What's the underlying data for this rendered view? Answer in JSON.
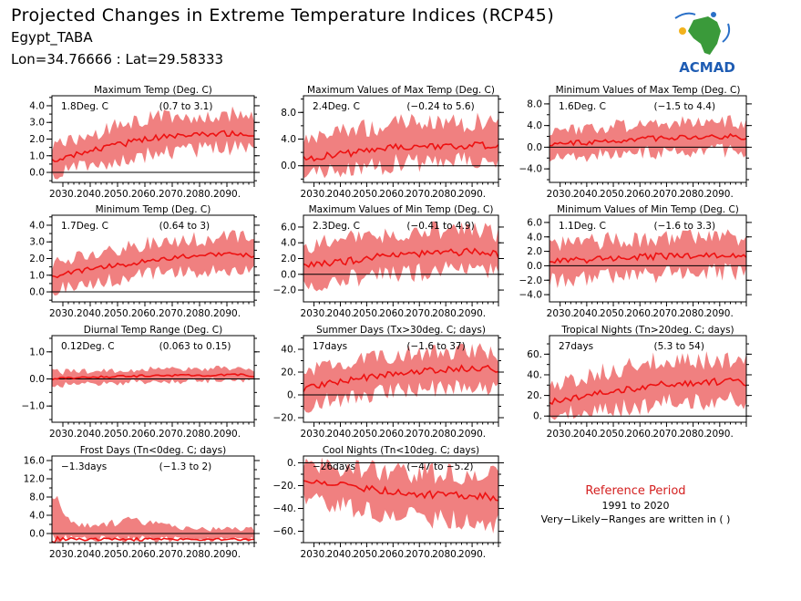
{
  "header": {
    "title": "Projected Changes in Extreme Temperature Indices (RCP45)",
    "location": "Egypt_TABA",
    "coords": "Lon=34.76666 : Lat=29.58333"
  },
  "logo": {
    "text": "ACMAD"
  },
  "reference": {
    "title": "Reference Period",
    "years": "1991 to 2020",
    "note": "Very−Likely−Ranges are written in ( )"
  },
  "colors": {
    "band": "#f08080",
    "line": "#ee1111",
    "title_red": "#d42020"
  },
  "chart_data": [
    {
      "type": "area",
      "title": "Maximum Temp (Deg. C)",
      "summary": "1.8Deg. C",
      "range": "(0.7 to 3.1)",
      "xticks": [
        "2030.",
        "2040.",
        "2050.",
        "2060.",
        "2070.",
        "2080.",
        "2090."
      ],
      "xlim": [
        2026,
        2100
      ],
      "yticks": [
        0,
        1,
        2,
        3,
        4
      ],
      "yticklabels": [
        "0.0",
        "1.0",
        "2.0",
        "3.0",
        "4.0"
      ],
      "ylim": [
        -0.6,
        4.6
      ],
      "x": [
        2026,
        2035,
        2045,
        2055,
        2065,
        2075,
        2085,
        2095,
        2100
      ],
      "median": [
        0.7,
        1.1,
        1.5,
        1.8,
        2.1,
        2.2,
        2.3,
        2.4,
        2.1
      ],
      "lower": [
        -0.2,
        0.3,
        0.5,
        0.9,
        1.2,
        1.3,
        1.4,
        1.5,
        1.3
      ],
      "upper": [
        1.6,
        2.0,
        2.5,
        3.0,
        3.3,
        3.3,
        3.4,
        3.6,
        3.2
      ]
    },
    {
      "type": "area",
      "title": "Maximum Values of Max Temp (Deg. C)",
      "summary": "2.4Deg. C",
      "range": "(−0.24 to 5.6)",
      "xticks": [
        "2030.",
        "2040.",
        "2050.",
        "2060.",
        "2070.",
        "2080.",
        "2090."
      ],
      "xlim": [
        2026,
        2100
      ],
      "yticks": [
        0,
        4,
        8
      ],
      "yticklabels": [
        "0.0",
        "4.0",
        "8.0"
      ],
      "ylim": [
        -2.5,
        10.5
      ],
      "x": [
        2026,
        2035,
        2045,
        2055,
        2065,
        2075,
        2085,
        2095,
        2100
      ],
      "median": [
        1.0,
        1.5,
        2.0,
        2.5,
        2.8,
        3.0,
        3.0,
        3.1,
        2.8
      ],
      "lower": [
        -1.5,
        -1.0,
        -0.5,
        0.0,
        0.5,
        0.5,
        0.6,
        0.7,
        0.3
      ],
      "upper": [
        3.5,
        4.5,
        5.5,
        6.0,
        6.5,
        6.5,
        6.4,
        6.6,
        6.0
      ]
    },
    {
      "type": "area",
      "title": "Minimum Values of Max Temp (Deg. C)",
      "summary": "1.6Deg. C",
      "range": "(−1.5 to 4.4)",
      "xticks": [
        "2030.",
        "2040.",
        "2050.",
        "2060.",
        "2070.",
        "2080.",
        "2090."
      ],
      "xlim": [
        2026,
        2100
      ],
      "yticks": [
        -4,
        0,
        4,
        8
      ],
      "yticklabels": [
        "−4.0",
        "0.0",
        "4.0",
        "8.0"
      ],
      "ylim": [
        -6.5,
        9.5
      ],
      "x": [
        2026,
        2035,
        2045,
        2055,
        2065,
        2075,
        2085,
        2095,
        2100
      ],
      "median": [
        0.5,
        0.8,
        1.0,
        1.3,
        1.6,
        1.8,
        1.9,
        2.0,
        1.8
      ],
      "lower": [
        -2.0,
        -1.8,
        -1.5,
        -1.2,
        -1.0,
        -0.8,
        -0.7,
        -0.6,
        -0.8
      ],
      "upper": [
        3.0,
        3.5,
        3.8,
        4.0,
        4.3,
        4.5,
        4.6,
        4.7,
        4.4
      ]
    },
    {
      "type": "area",
      "title": "Minimum Temp (Deg. C)",
      "summary": "1.7Deg. C",
      "range": "(0.64 to 3)",
      "xticks": [
        "2030.",
        "2040.",
        "2050.",
        "2060.",
        "2070.",
        "2080.",
        "2090."
      ],
      "xlim": [
        2026,
        2100
      ],
      "yticks": [
        0,
        1,
        2,
        3,
        4
      ],
      "yticklabels": [
        "0.0",
        "1.0",
        "2.0",
        "3.0",
        "4.0"
      ],
      "ylim": [
        -0.6,
        4.6
      ],
      "x": [
        2026,
        2035,
        2045,
        2055,
        2065,
        2075,
        2085,
        2095,
        2100
      ],
      "median": [
        0.9,
        1.2,
        1.5,
        1.7,
        2.0,
        2.1,
        2.2,
        2.3,
        2.1
      ],
      "lower": [
        0.1,
        0.4,
        0.6,
        0.9,
        1.1,
        1.2,
        1.3,
        1.4,
        1.2
      ],
      "upper": [
        1.7,
        2.1,
        2.4,
        2.7,
        3.0,
        3.1,
        3.2,
        3.3,
        3.0
      ]
    },
    {
      "type": "area",
      "title": "Maximum Values of Min Temp (Deg. C)",
      "summary": "2.3Deg. C",
      "range": "(−0.41 to 4.9)",
      "xticks": [
        "2030.",
        "2040.",
        "2050.",
        "2060.",
        "2070.",
        "2080.",
        "2090."
      ],
      "xlim": [
        2026,
        2100
      ],
      "yticks": [
        -2,
        0,
        2,
        4,
        6
      ],
      "yticklabels": [
        "−2.0",
        "0.0",
        "2.0",
        "4.0",
        "6.0"
      ],
      "ylim": [
        -3.5,
        7.5
      ],
      "x": [
        2026,
        2035,
        2045,
        2055,
        2065,
        2075,
        2085,
        2095,
        2100
      ],
      "median": [
        1.0,
        1.4,
        1.8,
        2.2,
        2.5,
        2.7,
        2.8,
        2.9,
        2.5
      ],
      "lower": [
        -1.5,
        -1.0,
        -0.6,
        -0.2,
        0.2,
        0.4,
        0.5,
        0.6,
        0.2
      ],
      "upper": [
        3.5,
        4.0,
        4.5,
        5.0,
        5.3,
        5.5,
        5.5,
        5.6,
        5.2
      ]
    },
    {
      "type": "area",
      "title": "Minimum Values of Min Temp (Deg. C)",
      "summary": "1.1Deg. C",
      "range": "(−1.6 to 3.3)",
      "xticks": [
        "2030.",
        "2040.",
        "2050.",
        "2060.",
        "2070.",
        "2080.",
        "2090."
      ],
      "xlim": [
        2026,
        2100
      ],
      "yticks": [
        -4,
        -2,
        0,
        2,
        4,
        6
      ],
      "yticklabels": [
        "−4.0",
        "−2.0",
        "0.0",
        "2.0",
        "4.0",
        "6.0"
      ],
      "ylim": [
        -5,
        7
      ],
      "x": [
        2026,
        2035,
        2045,
        2055,
        2065,
        2075,
        2085,
        2095,
        2100
      ],
      "median": [
        0.6,
        0.8,
        0.9,
        1.1,
        1.3,
        1.4,
        1.5,
        1.6,
        1.4
      ],
      "lower": [
        -2.0,
        -1.8,
        -1.6,
        -1.4,
        -1.2,
        -1.0,
        -0.9,
        -0.8,
        -1.0
      ],
      "upper": [
        3.0,
        3.2,
        3.4,
        3.6,
        3.8,
        3.9,
        4.0,
        4.1,
        3.8
      ]
    },
    {
      "type": "area",
      "title": "Diurnal Temp Range (Deg. C)",
      "summary": "0.12Deg. C",
      "range": "(0.063 to 0.15)",
      "xticks": [
        "2030.",
        "2040.",
        "2050.",
        "2060.",
        "2070.",
        "2080.",
        "2090."
      ],
      "xlim": [
        2026,
        2100
      ],
      "yticks": [
        -1,
        0,
        1
      ],
      "yticklabels": [
        "−1.0",
        "0.0",
        "1.0"
      ],
      "ylim": [
        -1.6,
        1.6
      ],
      "x": [
        2026,
        2035,
        2045,
        2055,
        2065,
        2075,
        2085,
        2095,
        2100
      ],
      "median": [
        0.0,
        0.05,
        0.08,
        0.1,
        0.12,
        0.13,
        0.14,
        0.15,
        0.12
      ],
      "lower": [
        -0.25,
        -0.2,
        -0.15,
        -0.12,
        -0.1,
        -0.08,
        -0.06,
        -0.05,
        -0.08
      ],
      "upper": [
        0.25,
        0.3,
        0.32,
        0.35,
        0.37,
        0.38,
        0.4,
        0.4,
        0.35
      ]
    },
    {
      "type": "area",
      "title": "Summer Days (Tx>30deg. C; days)",
      "summary": "17days",
      "range": "(−1.6 to 37)",
      "xticks": [
        "2030.",
        "2040.",
        "2050.",
        "2060.",
        "2070.",
        "2080.",
        "2090."
      ],
      "xlim": [
        2026,
        2100
      ],
      "yticks": [
        -20,
        0,
        20,
        40
      ],
      "yticklabels": [
        "−20.",
        "0.",
        "20.",
        "40."
      ],
      "ylim": [
        -24,
        52
      ],
      "x": [
        2026,
        2035,
        2045,
        2055,
        2065,
        2075,
        2085,
        2095,
        2100
      ],
      "median": [
        5,
        10,
        14,
        17,
        20,
        22,
        23,
        24,
        21
      ],
      "lower": [
        -10,
        -5,
        -2,
        2,
        5,
        6,
        7,
        8,
        5
      ],
      "upper": [
        20,
        25,
        30,
        33,
        36,
        38,
        38,
        39,
        36
      ]
    },
    {
      "type": "area",
      "title": "Tropical Nights (Tn>20deg. C; days)",
      "summary": "27days",
      "range": "(5.3 to 54)",
      "xticks": [
        "2030.",
        "2040.",
        "2050.",
        "2060.",
        "2070.",
        "2080.",
        "2090."
      ],
      "xlim": [
        2026,
        2100
      ],
      "yticks": [
        0,
        20,
        40,
        60
      ],
      "yticklabels": [
        "0.",
        "20.",
        "40.",
        "60."
      ],
      "ylim": [
        -6,
        78
      ],
      "x": [
        2026,
        2035,
        2045,
        2055,
        2065,
        2075,
        2085,
        2095,
        2100
      ],
      "median": [
        14,
        18,
        22,
        26,
        30,
        32,
        33,
        34,
        32
      ],
      "lower": [
        0,
        3,
        6,
        9,
        12,
        14,
        15,
        16,
        14
      ],
      "upper": [
        30,
        36,
        42,
        48,
        52,
        54,
        55,
        56,
        53
      ]
    },
    {
      "type": "area",
      "title": "Frost Days (Tn<0deg. C; days)",
      "summary": "−1.3days",
      "range": "(−1.3 to 2)",
      "xticks": [
        "2030.",
        "2040.",
        "2050.",
        "2060.",
        "2070.",
        "2080.",
        "2090."
      ],
      "xlim": [
        2026,
        2100
      ],
      "yticks": [
        0,
        4,
        8,
        12,
        16
      ],
      "yticklabels": [
        "0.0",
        "4.0",
        "8.0",
        "12.0",
        "16.0"
      ],
      "ylim": [
        -2,
        17
      ],
      "x": [
        2026,
        2035,
        2045,
        2055,
        2065,
        2075,
        2085,
        2095,
        2100
      ],
      "median": [
        -1.3,
        -1.3,
        -1.3,
        -1.3,
        -1.3,
        -1.3,
        -1.3,
        -1.3,
        -1.3
      ],
      "lower": [
        -1.3,
        -1.3,
        -1.3,
        -1.3,
        -1.3,
        -1.3,
        -1.3,
        -1.3,
        -1.3
      ],
      "upper": [
        8,
        2,
        2,
        3,
        2,
        1,
        1,
        1,
        1
      ]
    },
    {
      "type": "area",
      "title": "Cool Nights (Tn<10deg. C; days)",
      "summary": "−26days",
      "range": "(−47 to −5.2)",
      "xticks": [
        "2030.",
        "2040.",
        "2050.",
        "2060.",
        "2070.",
        "2080.",
        "2090."
      ],
      "xlim": [
        2026,
        2100
      ],
      "yticks": [
        -60,
        -40,
        -20,
        0
      ],
      "yticklabels": [
        "−60.",
        "−40.",
        "−20.",
        "0."
      ],
      "ylim": [
        -70,
        6
      ],
      "x": [
        2026,
        2035,
        2045,
        2055,
        2065,
        2075,
        2085,
        2095,
        2100
      ],
      "median": [
        -14,
        -18,
        -21,
        -24,
        -26,
        -28,
        -29,
        -30,
        -32
      ],
      "lower": [
        -30,
        -35,
        -40,
        -44,
        -47,
        -49,
        -50,
        -51,
        -54
      ],
      "upper": [
        -2,
        -3,
        -5,
        -7,
        -8,
        -9,
        -10,
        -11,
        -12
      ]
    }
  ]
}
